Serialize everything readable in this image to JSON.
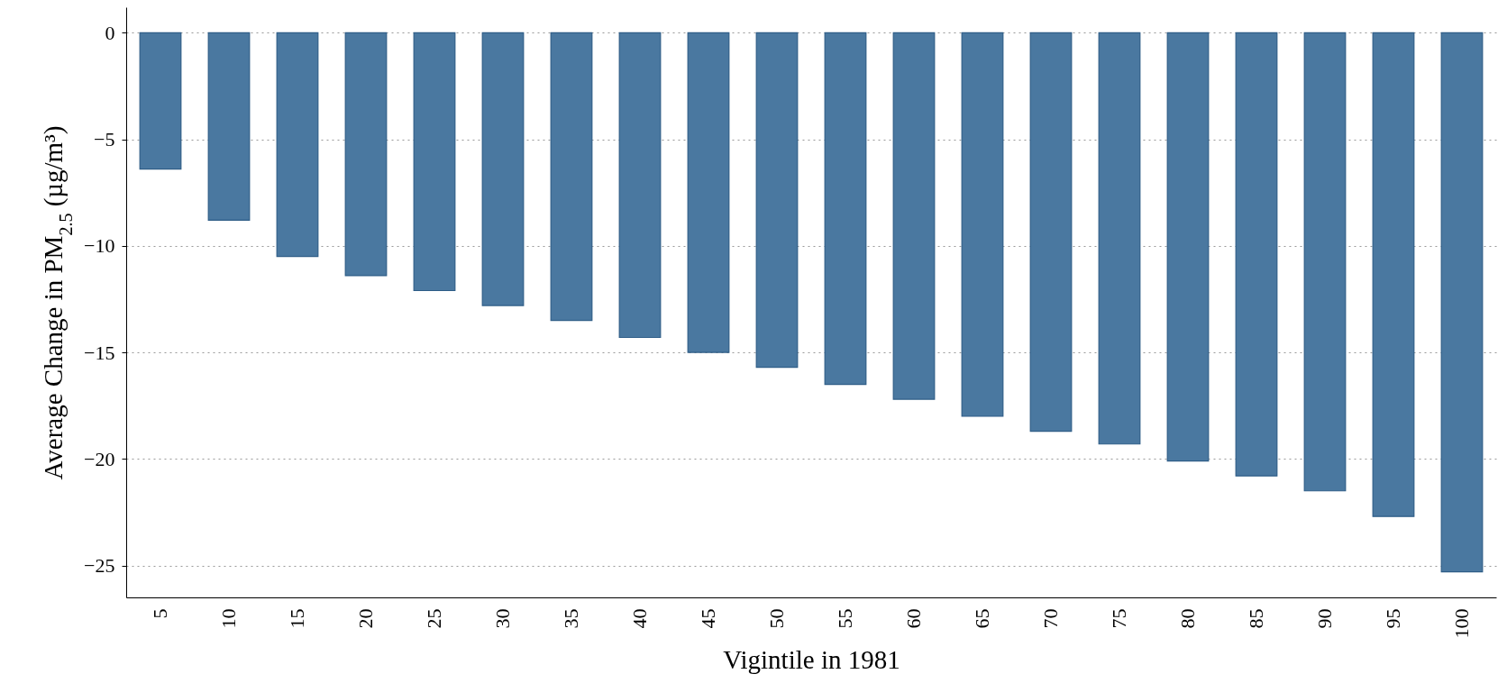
{
  "chart_data": {
    "type": "bar",
    "xlabel": "Vigintile in 1981",
    "ylabel": "Average Change in PM$_{2.5}$ (µg/m³)",
    "categories": [
      "5",
      "10",
      "15",
      "20",
      "25",
      "30",
      "35",
      "40",
      "45",
      "50",
      "55",
      "60",
      "65",
      "70",
      "75",
      "80",
      "85",
      "90",
      "95",
      "100"
    ],
    "values": [
      -6.4,
      -8.8,
      -10.5,
      -11.4,
      -12.1,
      -12.8,
      -13.5,
      -14.3,
      -15.0,
      -15.7,
      -16.5,
      -17.2,
      -18.0,
      -18.7,
      -19.3,
      -20.1,
      -20.8,
      -21.5,
      -22.7,
      -25.3
    ],
    "color": "#4a78a0",
    "ylim": [
      -26.5,
      1.2
    ],
    "yticks": [
      -25,
      -20,
      -15,
      -10,
      -5,
      0
    ],
    "grid": "y"
  }
}
